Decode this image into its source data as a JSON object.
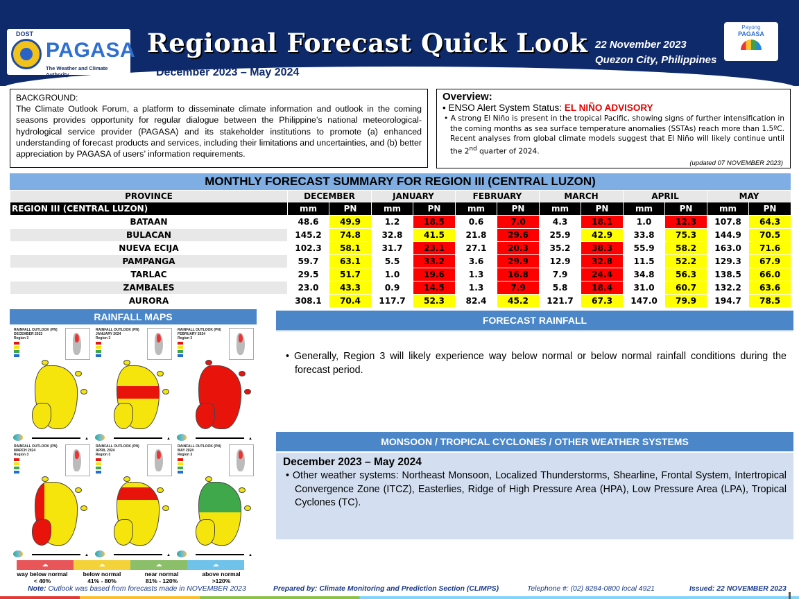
{
  "header": {
    "agency_sub": "DOST",
    "agency": "PAGASA",
    "agency_tagline": "The Weather and Climate Authority",
    "title": "Regional Forecast Quick Look",
    "period": "December 2023 – May  2024",
    "date": "22 November 2023",
    "location": "Quezon City, Philippines",
    "payong_l1": "Payong",
    "payong_l2": "PAGASA"
  },
  "background": {
    "heading": "BACKGROUND:",
    "text": "The Climate Outlook Forum, a platform to disseminate climate information and outlook in the coming seasons provides opportunity for regular dialogue between the Philippine’s national meteorological-hydrological service provider (PAGASA) and its stakeholder institutions to promote (a) enhanced understanding of forecast products and services, including their limitations and uncertainties, and (b) better appreciation by PAGASA of users’ information requirements."
  },
  "overview": {
    "heading": "Overview:",
    "enso_label": "ENSO Alert  System Status:",
    "enso_status": "EL NIÑO ADVISORY",
    "text": "A strong El Niño is present in the tropical Pacific, showing signs of further intensification in the coming months as sea surface temperature anomalies (SSTAs) reach more than 1.5ºC. Recent analyses from global climate models suggest that El Niño will likely continue  until the 2",
    "text_sup": "nd",
    "text_end": " quarter of 2024.",
    "updated": "(updated 07 NOVEMBER  2023)"
  },
  "summary": {
    "title": "MONTHLY FORECAST SUMMARY FOR REGION III (CENTRAL LUZON)",
    "province_header": "PROVINCE",
    "region_label": "REGION III (CENTRAL LUZON)",
    "months": [
      "DECEMBER",
      "JANUARY",
      "FEBRUARY",
      "MARCH",
      "APRIL",
      "MAY"
    ],
    "mm_label": "mm",
    "pn_label": "PN",
    "rows": [
      {
        "province": "BATAAN",
        "cells": [
          [
            "48.6",
            "49.9"
          ],
          [
            "1.2",
            "18.5"
          ],
          [
            "0.6",
            "7.0"
          ],
          [
            "4.3",
            "18.1"
          ],
          [
            "1.0",
            "12.3"
          ],
          [
            "107.8",
            "64.3"
          ]
        ]
      },
      {
        "province": "BULACAN",
        "cells": [
          [
            "145.2",
            "74.8"
          ],
          [
            "32.8",
            "41.5"
          ],
          [
            "21.8",
            "29.6"
          ],
          [
            "25.9",
            "42.9"
          ],
          [
            "33.8",
            "75.3"
          ],
          [
            "144.9",
            "70.5"
          ]
        ]
      },
      {
        "province": "NUEVA ECIJA",
        "cells": [
          [
            "102.3",
            "58.1"
          ],
          [
            "31.7",
            "23.1"
          ],
          [
            "27.1",
            "20.3"
          ],
          [
            "35.2",
            "38.3"
          ],
          [
            "55.9",
            "58.2"
          ],
          [
            "163.0",
            "71.6"
          ]
        ]
      },
      {
        "province": "PAMPANGA",
        "cells": [
          [
            "59.7",
            "63.1"
          ],
          [
            "5.5",
            "33.2"
          ],
          [
            "3.6",
            "29.9"
          ],
          [
            "12.9",
            "32.8"
          ],
          [
            "11.5",
            "52.2"
          ],
          [
            "129.3",
            "67.9"
          ]
        ]
      },
      {
        "province": "TARLAC",
        "cells": [
          [
            "29.5",
            "51.7"
          ],
          [
            "1.0",
            "19.6"
          ],
          [
            "1.3",
            "16.8"
          ],
          [
            "7.9",
            "24.4"
          ],
          [
            "34.8",
            "56.3"
          ],
          [
            "138.5",
            "66.0"
          ]
        ]
      },
      {
        "province": "ZAMBALES",
        "cells": [
          [
            "23.0",
            "43.3"
          ],
          [
            "0.9",
            "14.5"
          ],
          [
            "1.3",
            "7.9"
          ],
          [
            "5.8",
            "18.4"
          ],
          [
            "31.0",
            "60.7"
          ],
          [
            "132.2",
            "63.6"
          ]
        ]
      },
      {
        "province": "AURORA",
        "cells": [
          [
            "308.1",
            "70.4"
          ],
          [
            "117.7",
            "52.3"
          ],
          [
            "82.4",
            "45.2"
          ],
          [
            "121.7",
            "67.3"
          ],
          [
            "147.0",
            "79.9"
          ],
          [
            "194.7",
            "78.5"
          ]
        ]
      }
    ],
    "colors": {
      "below_normal": "#ffff00",
      "way_below_normal": "#ff0000"
    }
  },
  "maps": {
    "heading": "RAINFALL MAPS",
    "panels": [
      {
        "caption": "RAINFALL OUTLOOK (PN)\nDECEMBER 2023\nRegion 3",
        "fill": "#f5e50c"
      },
      {
        "caption": "RAINFALL OUTLOOK (PN)\nJANUARY 2024\nRegion 3",
        "fill": "#f5e50c"
      },
      {
        "caption": "RAINFALL OUTLOOK (PN)\nFEBRUARY 2024\nRegion 3",
        "fill": "#e8140c"
      },
      {
        "caption": "RAINFALL OUTLOOK (PN)\nMARCH 2024\nRegion 3",
        "fill": "#f5e50c"
      },
      {
        "caption": "RAINFALL OUTLOOK (PN)\nAPRIL 2024\nRegion 3",
        "fill": "#f5e50c"
      },
      {
        "caption": "RAINFALL OUTLOOK (PN)\nMAY 2024\nRegion 3",
        "fill": "#f5e50c"
      }
    ],
    "legend": [
      {
        "label": "way below normal",
        "range": "< 40%",
        "color": "#e8565a"
      },
      {
        "label": "below normal",
        "range": "41%  -  80%",
        "color": "#f4d33a"
      },
      {
        "label": "near normal",
        "range": "81% - 120%",
        "color": "#8cbf6a"
      },
      {
        "label": "above normal",
        "range": ">120%",
        "color": "#6fc3ea"
      }
    ]
  },
  "forecast": {
    "heading": "FORECAST RAINFALL",
    "text": "Generally, Region 3 will likely experience way below normal or below normal rainfall conditions during the forecast period."
  },
  "monsoon": {
    "heading": "MONSOON  / TROPICAL CYCLONES / OTHER WEATHER SYSTEMS",
    "period": "December 2023 – May  2024",
    "text": "Other weather systems: Northeast Monsoon, Localized Thunderstorms, Shearline, Frontal System, Intertropical Convergence Zone (ITCZ), Easterlies, Ridge of High Pressure Area (HPA), Low Pressure Area (LPA), Tropical Cyclones (TC)."
  },
  "footer": {
    "note_label": "Note:",
    "note": "Outlook was based from forecasts made in NOVEMBER 2023",
    "prepared": "Prepared by: Climate Monitoring and Prediction Section (CLIMPS)",
    "phone": "Telephone #: (02) 8284-0800 local 4921",
    "issued": "Issued: 22 NOVEMBER 2023"
  }
}
